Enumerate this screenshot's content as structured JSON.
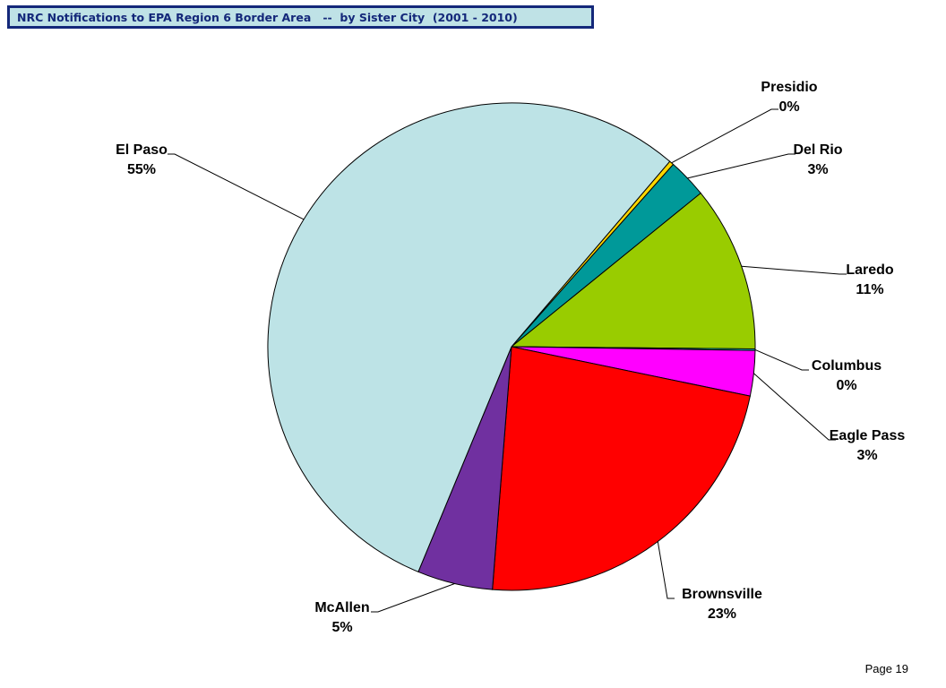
{
  "header": {
    "title": "NRC Notifications to EPA Region 6 Border Area   --  by Sister City  (2001 - 2010)"
  },
  "footer": {
    "page_label": "Page 19"
  },
  "chart_data": {
    "type": "pie",
    "title": "",
    "start_direction": "clockwise from El Paso/Presidio boundary at upper right",
    "series": [
      {
        "name": "Presidio",
        "value": 0.3,
        "label": "0%",
        "color": "#ffd700"
      },
      {
        "name": "Del Rio",
        "value": 2.6,
        "label": "3%",
        "color": "#009999"
      },
      {
        "name": "Laredo",
        "value": 11.0,
        "label": "11%",
        "color": "#99cc00"
      },
      {
        "name": "Columbus",
        "value": 0.1,
        "label": "0%",
        "color": "#00ffff"
      },
      {
        "name": "Eagle Pass",
        "value": 3.0,
        "label": "3%",
        "color": "#ff00ff"
      },
      {
        "name": "Brownsville",
        "value": 23.0,
        "label": "23%",
        "color": "#ff0000"
      },
      {
        "name": "McAllen",
        "value": 5.0,
        "label": "5%",
        "color": "#7030a0"
      },
      {
        "name": "El Paso",
        "value": 55.0,
        "label": "55%",
        "color": "#bde3e6"
      }
    ],
    "legend": "none",
    "data_labels": "outside with leader lines"
  }
}
